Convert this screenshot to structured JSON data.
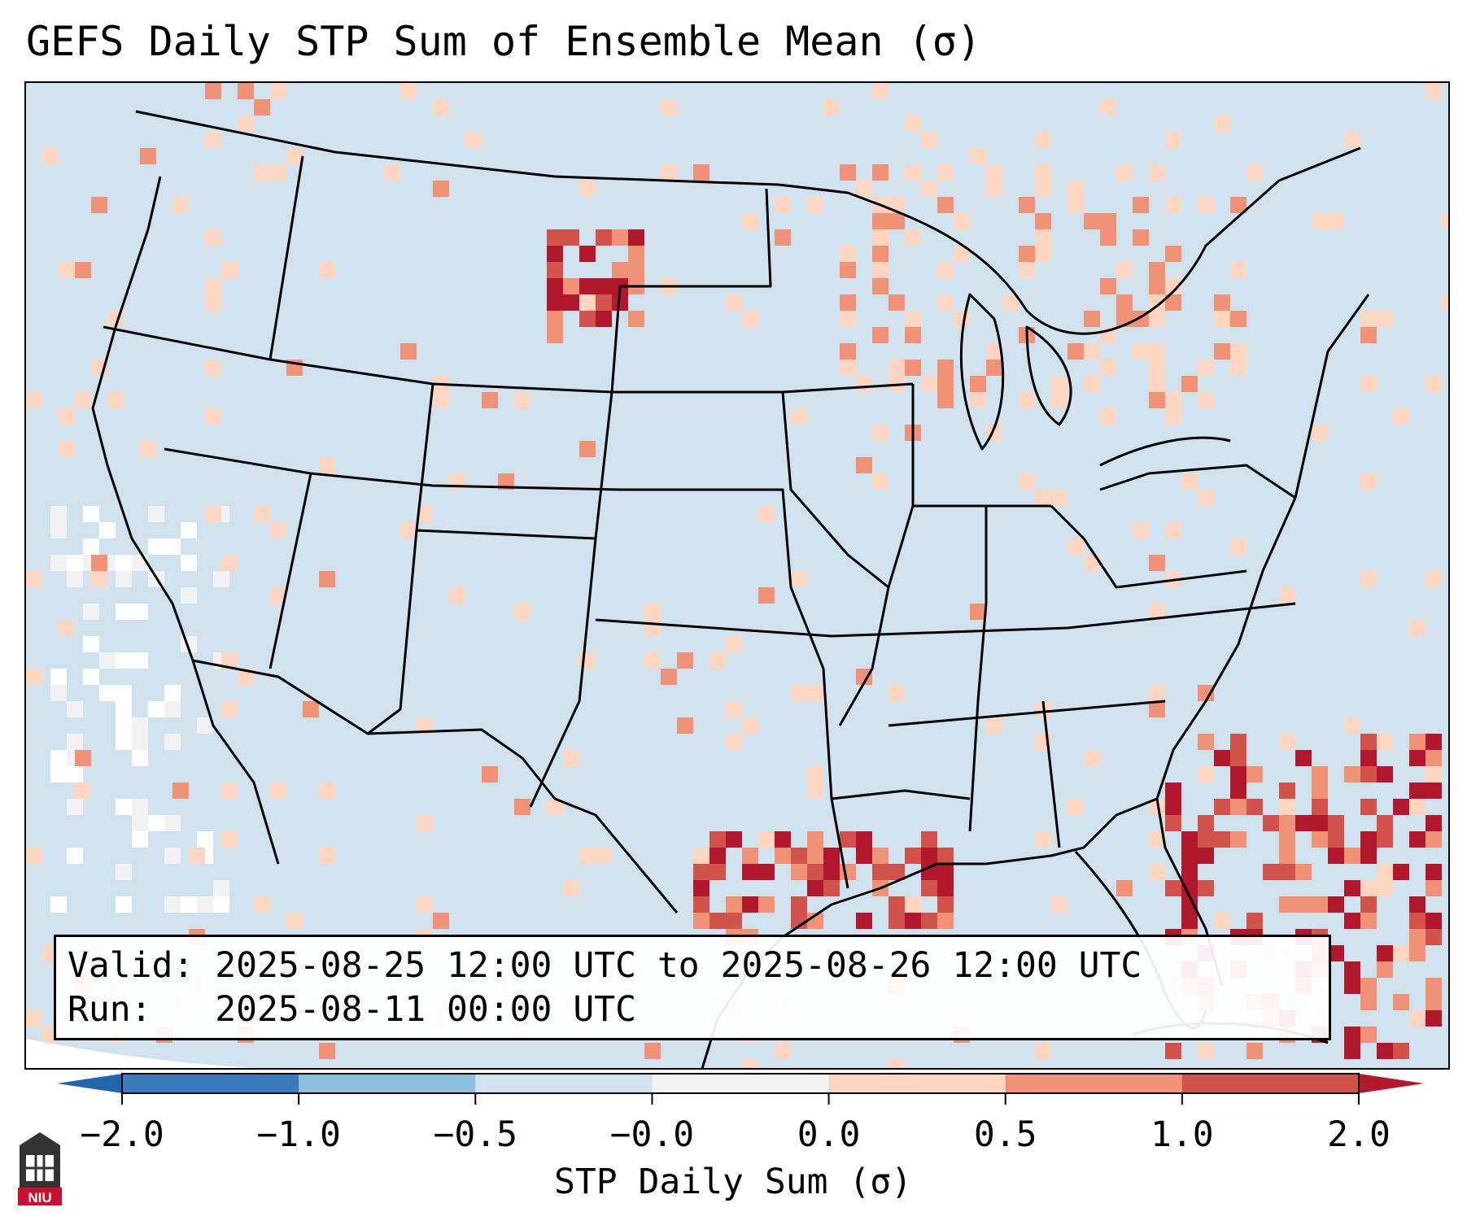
{
  "title": "GEFS Daily STP Sum of Ensemble Mean (σ)",
  "info": {
    "valid_label": "Valid:",
    "valid_range": "2025-08-25 12:00 UTC to 2025-08-26 12:00 UTC",
    "run_label": "Run:",
    "run_time": "2025-08-11 00:00 UTC"
  },
  "colorbar": {
    "label": "STP Daily Sum (σ)",
    "ticks": [
      "−2.0",
      "−1.0",
      "−0.5",
      "−0.0",
      "0.0",
      "0.5",
      "1.0",
      "2.0"
    ],
    "colors": [
      "#3a7bbd",
      "#8ebfdd",
      "#cfe2ee",
      "#f2f2f2",
      "#fbd5c0",
      "#ef9275",
      "#d1534b"
    ],
    "extend_min_color": "#2166ac",
    "extend_max_color": "#b2182b"
  },
  "map": {
    "background_color": "#cfe2ee",
    "highlight_regions": [
      {
        "name": "Texas/Louisiana Gulf coast",
        "level": "strong-positive"
      },
      {
        "name": "Southeast coast / Bahamas",
        "level": "strong-positive"
      },
      {
        "name": "Northern Montana / southern Canada",
        "level": "strong-positive"
      },
      {
        "name": "Ontario / Great Lakes",
        "level": "positive"
      },
      {
        "name": "Pacific coast offshore",
        "level": "near-zero"
      }
    ]
  },
  "logo": {
    "text": "NIU",
    "name": "niu-logo"
  }
}
